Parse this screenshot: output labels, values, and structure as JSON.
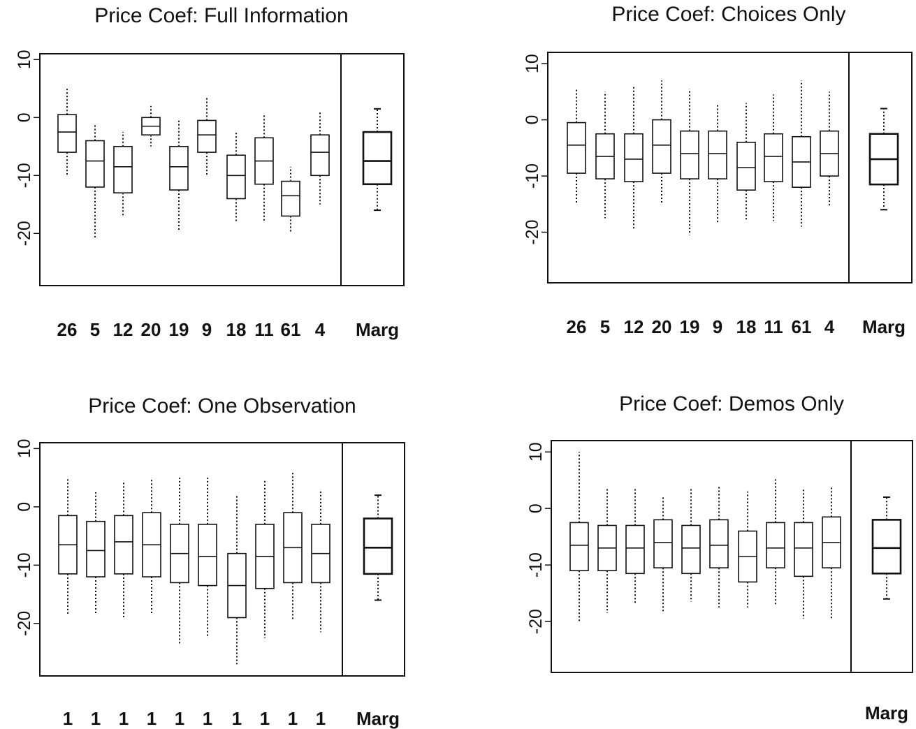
{
  "chart_data": [
    {
      "type": "box",
      "title": "Price Coef: Full Information",
      "categories": [
        "26",
        "5",
        "12",
        "20",
        "19",
        "9",
        "18",
        "11",
        "61",
        "4",
        "Marg"
      ],
      "ylim": [
        -29,
        11
      ],
      "yticks": [
        10,
        0,
        -10,
        -20
      ],
      "boxes": [
        {
          "whisker_low": -10,
          "q1": -6,
          "median": -2.5,
          "q3": 0.5,
          "whisker_high": 5
        },
        {
          "whisker_low": -21,
          "q1": -12,
          "median": -7.5,
          "q3": -4,
          "whisker_high": -1
        },
        {
          "whisker_low": -17,
          "q1": -13,
          "median": -8.5,
          "q3": -5,
          "whisker_high": -2.5
        },
        {
          "whisker_low": -5,
          "q1": -3,
          "median": -1.5,
          "q3": 0,
          "whisker_high": 2
        },
        {
          "whisker_low": -19.5,
          "q1": -12.5,
          "median": -8.5,
          "q3": -5,
          "whisker_high": -0.5
        },
        {
          "whisker_low": -10,
          "q1": -6,
          "median": -3,
          "q3": -0.5,
          "whisker_high": 3.5
        },
        {
          "whisker_low": -18,
          "q1": -14,
          "median": -10,
          "q3": -6.5,
          "whisker_high": -2.5
        },
        {
          "whisker_low": -18,
          "q1": -11.5,
          "median": -7.5,
          "q3": -3.5,
          "whisker_high": 0.5
        },
        {
          "whisker_low": -20,
          "q1": -17,
          "median": -13.5,
          "q3": -11,
          "whisker_high": -8.5
        },
        {
          "whisker_low": -15,
          "q1": -10,
          "median": -6,
          "q3": -3,
          "whisker_high": 1
        },
        {
          "whisker_low": -16,
          "q1": -11.5,
          "median": -7.5,
          "q3": -2.5,
          "whisker_high": 1.5
        }
      ]
    },
    {
      "type": "box",
      "title": "Price Coef: Choices Only",
      "categories": [
        "26",
        "5",
        "12",
        "20",
        "19",
        "9",
        "18",
        "11",
        "61",
        "4",
        "Marg"
      ],
      "ylim": [
        -29,
        12
      ],
      "yticks": [
        10,
        0,
        -10,
        -20
      ],
      "boxes": [
        {
          "whisker_low": -15,
          "q1": -9.5,
          "median": -4.5,
          "q3": -0.5,
          "whisker_high": 5.5
        },
        {
          "whisker_low": -17.5,
          "q1": -10.5,
          "median": -6.5,
          "q3": -2.5,
          "whisker_high": 5
        },
        {
          "whisker_low": -19.5,
          "q1": -11,
          "median": -7,
          "q3": -2.5,
          "whisker_high": 6
        },
        {
          "whisker_low": -15,
          "q1": -9.5,
          "median": -4.5,
          "q3": 0,
          "whisker_high": 7
        },
        {
          "whisker_low": -20.5,
          "q1": -10.5,
          "median": -6,
          "q3": -2,
          "whisker_high": 5.5
        },
        {
          "whisker_low": -18.5,
          "q1": -10.5,
          "median": -6,
          "q3": -2,
          "whisker_high": 3
        },
        {
          "whisker_low": -18,
          "q1": -12.5,
          "median": -8.5,
          "q3": -4,
          "whisker_high": 3
        },
        {
          "whisker_low": -18,
          "q1": -11,
          "median": -6.5,
          "q3": -2.5,
          "whisker_high": 4.5
        },
        {
          "whisker_low": -19,
          "q1": -12,
          "median": -7.5,
          "q3": -3,
          "whisker_high": 7
        },
        {
          "whisker_low": -15.5,
          "q1": -10,
          "median": -6,
          "q3": -2,
          "whisker_high": 5
        },
        {
          "whisker_low": -16,
          "q1": -11.5,
          "median": -7,
          "q3": -2.5,
          "whisker_high": 2
        }
      ]
    },
    {
      "type": "box",
      "title": "Price Coef: One Observation",
      "categories": [
        "1",
        "1",
        "1",
        "1",
        "1",
        "1",
        "1",
        "1",
        "1",
        "1",
        "Marg"
      ],
      "ylim": [
        -29,
        11
      ],
      "yticks": [
        10,
        0,
        -10,
        -20
      ],
      "boxes": [
        {
          "whisker_low": -18.5,
          "q1": -11.5,
          "median": -6.5,
          "q3": -1.5,
          "whisker_high": 5
        },
        {
          "whisker_low": -18.5,
          "q1": -12,
          "median": -7.5,
          "q3": -2.5,
          "whisker_high": 2.5
        },
        {
          "whisker_low": -19,
          "q1": -11.5,
          "median": -6,
          "q3": -1.5,
          "whisker_high": 4.5
        },
        {
          "whisker_low": -18.5,
          "q1": -12,
          "median": -6.5,
          "q3": -1,
          "whisker_high": 5
        },
        {
          "whisker_low": -23.5,
          "q1": -13,
          "median": -8,
          "q3": -3,
          "whisker_high": 5
        },
        {
          "whisker_low": -22.5,
          "q1": -13.5,
          "median": -8.5,
          "q3": -3,
          "whisker_high": 5
        },
        {
          "whisker_low": -27,
          "q1": -19,
          "median": -13.5,
          "q3": -8,
          "whisker_high": 2
        },
        {
          "whisker_low": -22.5,
          "q1": -14,
          "median": -8.5,
          "q3": -3,
          "whisker_high": 4.5
        },
        {
          "whisker_low": -19.5,
          "q1": -13,
          "median": -7,
          "q3": -1,
          "whisker_high": 6
        },
        {
          "whisker_low": -21.5,
          "q1": -13,
          "median": -8,
          "q3": -3,
          "whisker_high": 3
        },
        {
          "whisker_low": -16,
          "q1": -11.5,
          "median": -7,
          "q3": -2,
          "whisker_high": 2
        }
      ]
    },
    {
      "type": "box",
      "title": "Price Coef: Demos Only",
      "categories": [
        "",
        "",
        "",
        "",
        "",
        "",
        "",
        "",
        "",
        "",
        "Marg"
      ],
      "ylim": [
        -29,
        12
      ],
      "yticks": [
        10,
        0,
        -10,
        -20
      ],
      "boxes": [
        {
          "whisker_low": -20,
          "q1": -11,
          "median": -6.5,
          "q3": -2.5,
          "whisker_high": 10
        },
        {
          "whisker_low": -18.5,
          "q1": -11,
          "median": -7,
          "q3": -3,
          "whisker_high": 3.5
        },
        {
          "whisker_low": -17,
          "q1": -11.5,
          "median": -7,
          "q3": -3,
          "whisker_high": 3.5
        },
        {
          "whisker_low": -18.5,
          "q1": -10.5,
          "median": -6,
          "q3": -2,
          "whisker_high": 2
        },
        {
          "whisker_low": -16.5,
          "q1": -11.5,
          "median": -7,
          "q3": -3,
          "whisker_high": 3.5
        },
        {
          "whisker_low": -17.5,
          "q1": -10.5,
          "median": -6.5,
          "q3": -2,
          "whisker_high": 4
        },
        {
          "whisker_low": -17.5,
          "q1": -13,
          "median": -8.5,
          "q3": -4,
          "whisker_high": 3
        },
        {
          "whisker_low": -17,
          "q1": -10.5,
          "median": -7,
          "q3": -2.5,
          "whisker_high": 5.5
        },
        {
          "whisker_low": -19.5,
          "q1": -12,
          "median": -7,
          "q3": -2.5,
          "whisker_high": 3.5
        },
        {
          "whisker_low": -19.5,
          "q1": -10.5,
          "median": -6,
          "q3": -1.5,
          "whisker_high": 4
        },
        {
          "whisker_low": -16,
          "q1": -11.5,
          "median": -7,
          "q3": -2,
          "whisker_high": 2
        }
      ]
    }
  ]
}
